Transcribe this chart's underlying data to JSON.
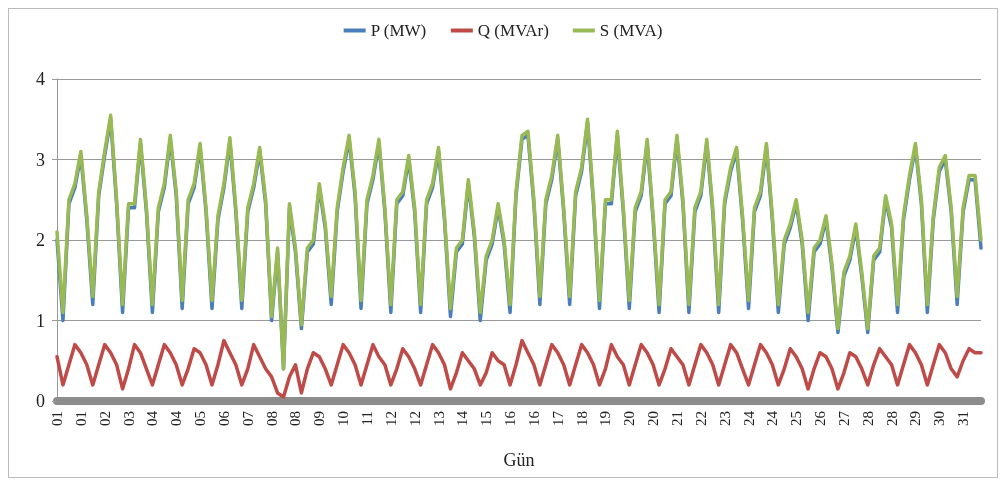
{
  "chart_data": {
    "type": "line",
    "xlabel": "Gün",
    "categories": [
      "01",
      null,
      null,
      null,
      "01",
      null,
      null,
      null,
      "02",
      null,
      null,
      null,
      "03",
      null,
      null,
      null,
      "04",
      null,
      null,
      null,
      "04",
      null,
      null,
      null,
      "05",
      null,
      null,
      null,
      "06",
      null,
      null,
      null,
      "07",
      null,
      null,
      null,
      "08",
      null,
      null,
      null,
      "08",
      null,
      null,
      null,
      "09",
      null,
      null,
      null,
      "10",
      null,
      null,
      null,
      "11",
      null,
      null,
      null,
      "12",
      null,
      null,
      null,
      "12",
      null,
      null,
      null,
      "13",
      null,
      null,
      null,
      "14",
      null,
      null,
      null,
      "15",
      null,
      null,
      null,
      "16",
      null,
      null,
      null,
      "16",
      null,
      null,
      null,
      "17",
      null,
      null,
      null,
      "18",
      null,
      null,
      null,
      "19",
      null,
      null,
      null,
      "20",
      null,
      null,
      null,
      "20",
      null,
      null,
      null,
      "21",
      null,
      null,
      null,
      "22",
      null,
      null,
      null,
      "23",
      null,
      null,
      null,
      "24",
      null,
      null,
      null,
      "24",
      null,
      null,
      null,
      "25",
      null,
      null,
      null,
      "26",
      null,
      null,
      null,
      "27",
      null,
      null,
      null,
      "28",
      null,
      null,
      null,
      "28",
      null,
      null,
      null,
      "29",
      null,
      null,
      null,
      "30",
      null,
      null,
      null,
      "31",
      null,
      null,
      null
    ],
    "series": [
      {
        "name": "P (MW)",
        "color": "#4a7ebb",
        "values": [
          2.0,
          1.0,
          2.45,
          2.65,
          3.05,
          2.25,
          1.2,
          2.55,
          3.05,
          3.5,
          2.45,
          1.1,
          2.4,
          2.4,
          3.2,
          2.35,
          1.1,
          2.35,
          2.65,
          3.25,
          2.55,
          1.15,
          2.45,
          2.65,
          3.15,
          2.35,
          1.15,
          2.25,
          2.65,
          3.22,
          2.35,
          1.15,
          2.35,
          2.65,
          3.1,
          2.45,
          1.0,
          1.85,
          0.4,
          2.4,
          1.85,
          0.9,
          1.85,
          1.95,
          2.65,
          2.15,
          1.2,
          2.35,
          2.85,
          3.25,
          2.55,
          1.15,
          2.45,
          2.75,
          3.2,
          2.35,
          1.1,
          2.45,
          2.55,
          3.0,
          2.35,
          1.1,
          2.45,
          2.65,
          3.1,
          2.25,
          1.05,
          1.85,
          1.95,
          2.7,
          2.05,
          1.0,
          1.75,
          1.95,
          2.4,
          1.95,
          1.1,
          2.55,
          3.25,
          3.3,
          2.45,
          1.2,
          2.45,
          2.75,
          3.25,
          2.35,
          1.2,
          2.55,
          2.85,
          3.45,
          2.45,
          1.15,
          2.45,
          2.45,
          3.3,
          2.35,
          1.15,
          2.35,
          2.55,
          3.2,
          2.25,
          1.1,
          2.45,
          2.55,
          3.25,
          2.45,
          1.1,
          2.35,
          2.55,
          3.2,
          2.35,
          1.1,
          2.45,
          2.85,
          3.1,
          2.25,
          1.15,
          2.35,
          2.55,
          3.15,
          2.25,
          1.1,
          1.95,
          2.15,
          2.45,
          1.95,
          1.0,
          1.85,
          1.95,
          2.25,
          1.65,
          0.85,
          1.55,
          1.75,
          2.15,
          1.55,
          0.85,
          1.75,
          1.85,
          2.5,
          2.15,
          1.1,
          2.25,
          2.75,
          3.15,
          2.45,
          1.1,
          2.25,
          2.85,
          3.0,
          2.35,
          1.2,
          2.35,
          2.75,
          2.75,
          1.9
        ]
      },
      {
        "name": "Q (MVAr)",
        "color": "#be4b48",
        "values": [
          0.55,
          0.2,
          0.45,
          0.7,
          0.6,
          0.45,
          0.2,
          0.45,
          0.7,
          0.6,
          0.45,
          0.15,
          0.4,
          0.7,
          0.6,
          0.4,
          0.2,
          0.45,
          0.7,
          0.6,
          0.45,
          0.2,
          0.4,
          0.65,
          0.6,
          0.45,
          0.2,
          0.45,
          0.75,
          0.6,
          0.45,
          0.2,
          0.4,
          0.7,
          0.55,
          0.4,
          0.3,
          0.1,
          0.05,
          0.3,
          0.45,
          0.1,
          0.4,
          0.6,
          0.55,
          0.4,
          0.2,
          0.45,
          0.7,
          0.6,
          0.45,
          0.2,
          0.45,
          0.7,
          0.55,
          0.45,
          0.2,
          0.4,
          0.65,
          0.55,
          0.4,
          0.2,
          0.45,
          0.7,
          0.6,
          0.45,
          0.15,
          0.35,
          0.6,
          0.5,
          0.4,
          0.2,
          0.35,
          0.6,
          0.5,
          0.45,
          0.2,
          0.45,
          0.75,
          0.6,
          0.45,
          0.2,
          0.45,
          0.7,
          0.6,
          0.45,
          0.2,
          0.45,
          0.7,
          0.6,
          0.45,
          0.2,
          0.4,
          0.7,
          0.55,
          0.45,
          0.2,
          0.45,
          0.7,
          0.6,
          0.45,
          0.2,
          0.4,
          0.65,
          0.55,
          0.45,
          0.2,
          0.45,
          0.7,
          0.6,
          0.45,
          0.2,
          0.45,
          0.7,
          0.6,
          0.4,
          0.2,
          0.45,
          0.7,
          0.6,
          0.45,
          0.2,
          0.4,
          0.65,
          0.55,
          0.4,
          0.15,
          0.4,
          0.6,
          0.55,
          0.4,
          0.15,
          0.35,
          0.6,
          0.55,
          0.4,
          0.2,
          0.45,
          0.65,
          0.55,
          0.45,
          0.2,
          0.45,
          0.7,
          0.6,
          0.45,
          0.2,
          0.45,
          0.7,
          0.6,
          0.4,
          0.3,
          0.5,
          0.65,
          0.6,
          0.6
        ]
      },
      {
        "name": "S (MVA)",
        "color": "#98b954",
        "values": [
          2.1,
          1.1,
          2.5,
          2.7,
          3.1,
          2.3,
          1.3,
          2.6,
          3.1,
          3.55,
          2.5,
          1.2,
          2.45,
          2.45,
          3.25,
          2.4,
          1.2,
          2.4,
          2.7,
          3.3,
          2.6,
          1.25,
          2.5,
          2.7,
          3.2,
          2.4,
          1.25,
          2.3,
          2.7,
          3.27,
          2.4,
          1.25,
          2.4,
          2.7,
          3.15,
          2.5,
          1.05,
          1.9,
          0.4,
          2.45,
          1.9,
          0.95,
          1.9,
          2.0,
          2.7,
          2.2,
          1.3,
          2.4,
          2.9,
          3.3,
          2.6,
          1.25,
          2.5,
          2.8,
          3.25,
          2.4,
          1.2,
          2.5,
          2.6,
          3.05,
          2.4,
          1.2,
          2.5,
          2.7,
          3.15,
          2.3,
          1.15,
          1.9,
          2.0,
          2.75,
          2.1,
          1.1,
          1.8,
          2.0,
          2.45,
          2.0,
          1.2,
          2.6,
          3.3,
          3.35,
          2.5,
          1.3,
          2.5,
          2.8,
          3.3,
          2.4,
          1.3,
          2.6,
          2.9,
          3.5,
          2.5,
          1.25,
          2.5,
          2.5,
          3.35,
          2.4,
          1.25,
          2.4,
          2.6,
          3.25,
          2.3,
          1.2,
          2.5,
          2.6,
          3.3,
          2.5,
          1.2,
          2.4,
          2.6,
          3.25,
          2.4,
          1.2,
          2.5,
          2.9,
          3.15,
          2.3,
          1.25,
          2.4,
          2.6,
          3.2,
          2.3,
          1.2,
          2.0,
          2.2,
          2.5,
          2.0,
          1.1,
          1.9,
          2.0,
          2.3,
          1.7,
          0.9,
          1.6,
          1.8,
          2.2,
          1.6,
          0.9,
          1.8,
          1.9,
          2.55,
          2.2,
          1.2,
          2.3,
          2.8,
          3.2,
          2.5,
          1.2,
          2.3,
          2.9,
          3.05,
          2.4,
          1.3,
          2.4,
          2.8,
          2.8,
          2.0
        ]
      }
    ],
    "ylim": [
      0,
      4
    ],
    "yticks": [
      0,
      1,
      2,
      3,
      4
    ],
    "grid": "y",
    "legend": "top",
    "marker": "none",
    "line_style": "solid"
  }
}
